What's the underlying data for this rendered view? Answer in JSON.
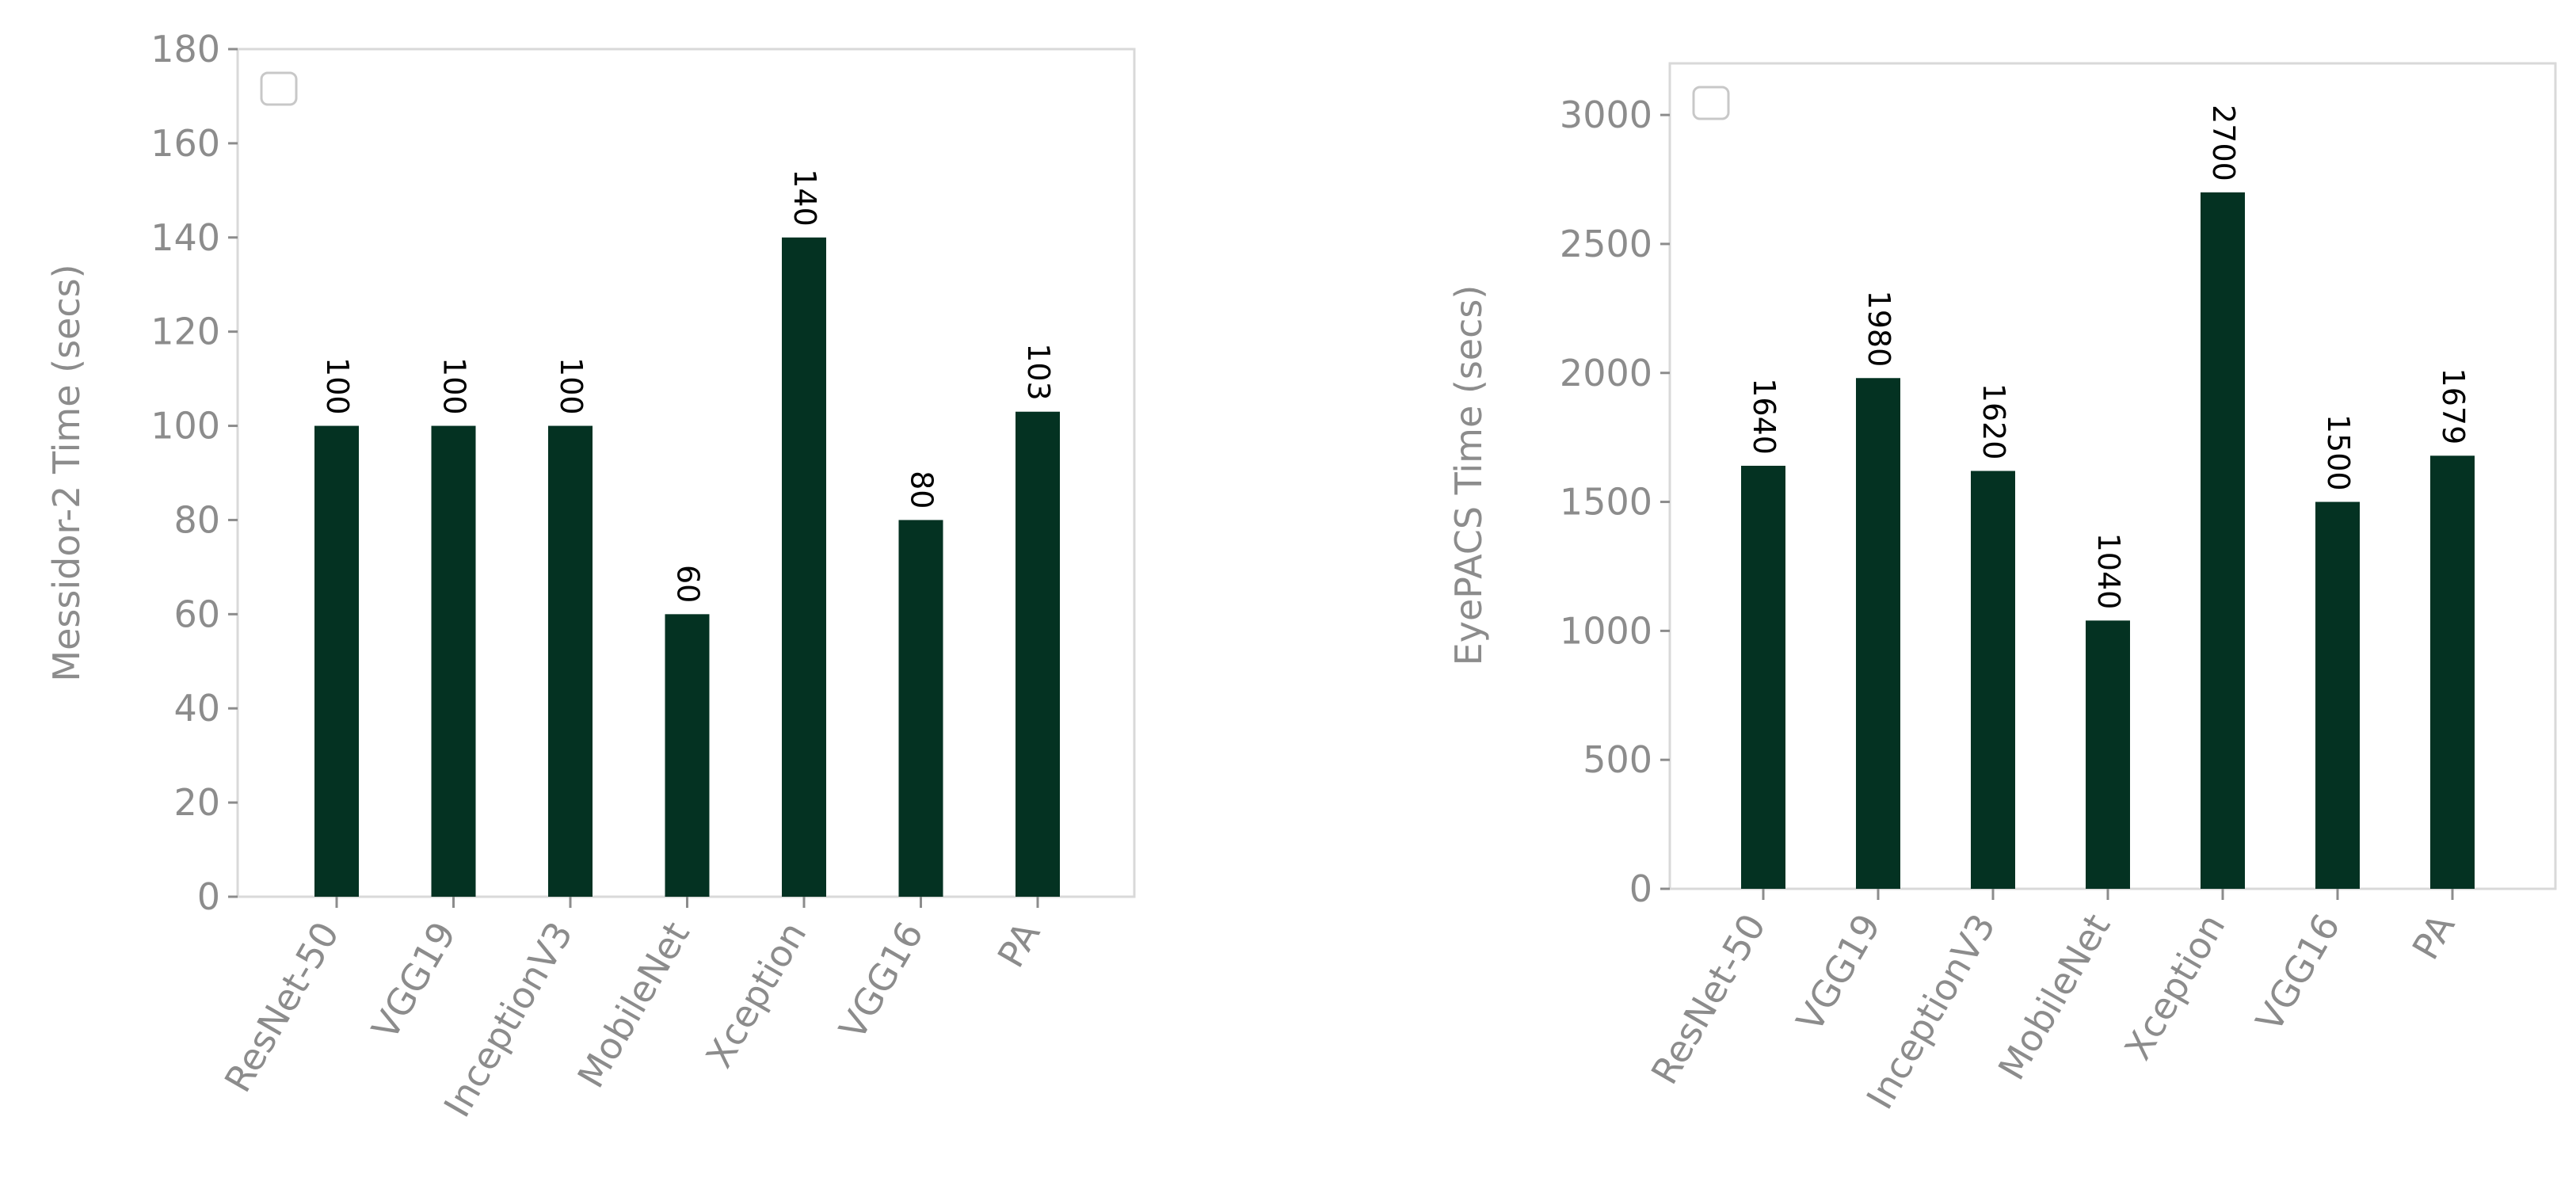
{
  "colors": {
    "bar": "#043222",
    "axis": "#8c8c8c",
    "frame": "#d9d9d9"
  },
  "chart_data": [
    {
      "type": "bar",
      "title": "",
      "xlabel": "",
      "ylabel": "Messidor-2 Time (secs)",
      "categories": [
        "ResNet-50",
        "VGG19",
        "InceptionV3",
        "MobileNet",
        "Xception",
        "VGG16",
        "PA"
      ],
      "values": [
        100,
        100,
        100,
        60,
        140,
        80,
        103
      ],
      "data_labels": [
        "100",
        "100",
        "100",
        "60",
        "140",
        "80",
        "103"
      ],
      "ylim": [
        0,
        180
      ],
      "yticks": [
        0,
        20,
        40,
        60,
        80,
        100,
        120,
        140,
        160,
        180
      ],
      "grid": false,
      "legend": "top-left, empty"
    },
    {
      "type": "bar",
      "title": "",
      "xlabel": "",
      "ylabel": "EyePACS Time (secs)",
      "categories": [
        "ResNet-50",
        "VGG19",
        "InceptionV3",
        "MobileNet",
        "Xception",
        "VGG16",
        "PA"
      ],
      "values": [
        1640,
        1980,
        1620,
        1040,
        2700,
        1500,
        1679
      ],
      "data_labels": [
        "1640",
        "1980",
        "1620",
        "1040",
        "2700",
        "1500",
        "1679"
      ],
      "ylim": [
        0,
        3200
      ],
      "yticks": [
        0,
        500,
        1000,
        1500,
        2000,
        2500,
        3000
      ],
      "grid": false,
      "legend": "top-left, empty"
    }
  ]
}
